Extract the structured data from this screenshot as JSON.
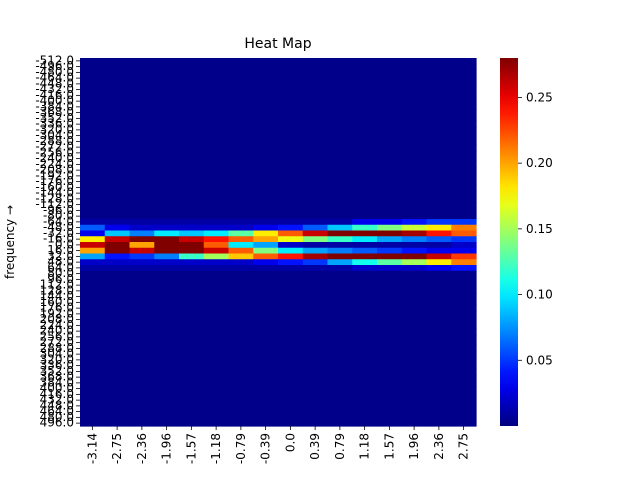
{
  "chart_data": {
    "type": "heatmap",
    "title": "Heat Map",
    "ylabel": "frequency →",
    "xlabel": "",
    "x_ticks": [
      "-3.14",
      "-2.75",
      "-2.36",
      "-1.96",
      "-1.57",
      "-1.18",
      "-0.79",
      "-0.39",
      "0.0",
      "0.39",
      "0.79",
      "1.18",
      "1.57",
      "1.96",
      "2.36",
      "2.75"
    ],
    "y_ticks": [
      "-512.0",
      "-496.0",
      "-480.0",
      "-464.0",
      "-448.0",
      "-432.0",
      "-416.0",
      "-400.0",
      "-384.0",
      "-368.0",
      "-352.0",
      "-336.0",
      "-320.0",
      "-304.0",
      "-288.0",
      "-272.0",
      "-256.0",
      "-240.0",
      "-224.0",
      "-208.0",
      "-192.0",
      "-176.0",
      "-160.0",
      "-144.0",
      "-128.0",
      "-112.0",
      "-96.0",
      "-80.0",
      "-64.0",
      "-48.0",
      "-32.0",
      "-16.0",
      "0.0",
      "16.0",
      "32.0",
      "48.0",
      "64.0",
      "80.0",
      "96.0",
      "112.0",
      "128.0",
      "144.0",
      "160.0",
      "176.0",
      "192.0",
      "208.0",
      "224.0",
      "240.0",
      "256.0",
      "272.0",
      "288.0",
      "304.0",
      "320.0",
      "336.0",
      "352.0",
      "368.0",
      "384.0",
      "400.0",
      "416.0",
      "432.0",
      "448.0",
      "464.0",
      "480.0",
      "496.0"
    ],
    "colormap": "jet",
    "value_range": [
      0.0,
      0.28
    ],
    "colorbar_ticks": [
      "0.05",
      "0.10",
      "0.15",
      "0.20",
      "0.25"
    ],
    "background_value": 0.003,
    "band_rows": {
      "28": [
        0.01,
        0.01,
        0.01,
        0.01,
        0.01,
        0.01,
        0.01,
        0.01,
        0.01,
        0.01,
        0.01,
        0.03,
        0.03,
        0.04,
        0.05,
        0.05
      ],
      "29": [
        0.06,
        0.03,
        0.02,
        0.02,
        0.02,
        0.02,
        0.02,
        0.03,
        0.04,
        0.06,
        0.09,
        0.12,
        0.14,
        0.16,
        0.18,
        0.21
      ],
      "30": [
        0.03,
        0.09,
        0.07,
        0.1,
        0.09,
        0.1,
        0.13,
        0.18,
        0.22,
        0.26,
        0.28,
        0.28,
        0.28,
        0.27,
        0.24,
        0.22
      ],
      "31": [
        0.18,
        0.26,
        0.28,
        0.28,
        0.26,
        0.24,
        0.22,
        0.2,
        0.17,
        0.14,
        0.12,
        0.1,
        0.08,
        0.07,
        0.06,
        0.05
      ],
      "32": [
        0.26,
        0.28,
        0.2,
        0.28,
        0.28,
        0.22,
        0.1,
        0.08,
        0.02,
        0.01,
        0.01,
        0.01,
        0.01,
        0.01,
        0.01,
        0.02
      ],
      "33": [
        0.2,
        0.28,
        0.26,
        0.28,
        0.28,
        0.26,
        0.22,
        0.14,
        0.1,
        0.08,
        0.07,
        0.06,
        0.05,
        0.04,
        0.03,
        0.03
      ],
      "34": [
        0.08,
        0.04,
        0.05,
        0.07,
        0.12,
        0.15,
        0.19,
        0.22,
        0.24,
        0.27,
        0.28,
        0.28,
        0.28,
        0.28,
        0.26,
        0.23
      ],
      "35": [
        0.02,
        0.02,
        0.02,
        0.02,
        0.02,
        0.02,
        0.02,
        0.03,
        0.04,
        0.05,
        0.08,
        0.11,
        0.13,
        0.15,
        0.18,
        0.21
      ],
      "36": [
        0.01,
        0.01,
        0.01,
        0.01,
        0.01,
        0.01,
        0.01,
        0.01,
        0.01,
        0.01,
        0.01,
        0.02,
        0.02,
        0.02,
        0.03,
        0.04
      ]
    }
  }
}
